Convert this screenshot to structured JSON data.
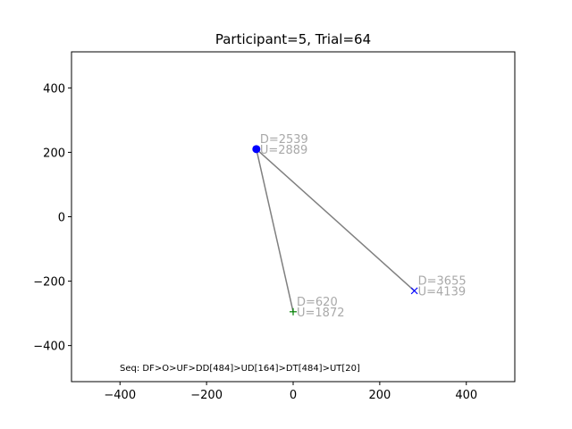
{
  "chart_data": {
    "type": "scatter",
    "title": "Participant=5, Trial=64",
    "xlabel": "",
    "ylabel": "",
    "xlim": [
      -512,
      512
    ],
    "ylim": [
      -512,
      512
    ],
    "xticks": [
      -400,
      -200,
      0,
      200,
      400
    ],
    "yticks": [
      -400,
      -200,
      0,
      200,
      400
    ],
    "xtick_labels": [
      "−400",
      "−200",
      "0",
      "200",
      "400"
    ],
    "ytick_labels": [
      "−400",
      "−200",
      "0",
      "200",
      "400"
    ],
    "grid": false,
    "points": [
      {
        "marker": "circle",
        "x": -85,
        "y": 210,
        "color": "#0000ff",
        "label_d": "D=2539",
        "label_u": "U=2889"
      },
      {
        "marker": "plus",
        "x": 0,
        "y": -295,
        "color": "#008000",
        "label_d": "D=620",
        "label_u": "U=1872"
      },
      {
        "marker": "x",
        "x": 280,
        "y": -230,
        "color": "#0000ff",
        "label_d": "D=3655",
        "label_u": "U=4139"
      }
    ],
    "lines": [
      {
        "from": [
          -85,
          210
        ],
        "to": [
          0,
          -295
        ],
        "color": "#808080"
      },
      {
        "from": [
          -85,
          210
        ],
        "to": [
          280,
          -230
        ],
        "color": "#808080"
      }
    ],
    "annotation": "Seq: DF>O>UF>DD[484]>UD[164]>DT[484]>UT[20]"
  }
}
